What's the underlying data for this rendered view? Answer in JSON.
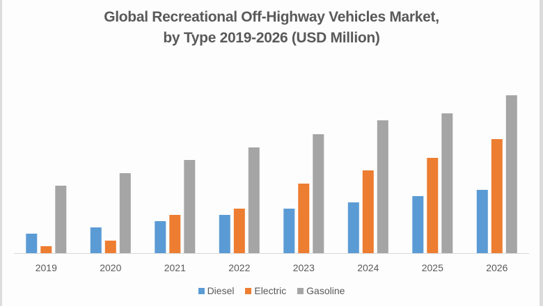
{
  "chart_data": {
    "type": "bar",
    "title": "Global Recreational Off-Highway Vehicles Market,",
    "subtitle": "by Type 2019-2026 (USD Million)",
    "xlabel": "",
    "ylabel": "",
    "categories": [
      "2019",
      "2020",
      "2021",
      "2022",
      "2023",
      "2024",
      "2025",
      "2026"
    ],
    "series": [
      {
        "name": "Diesel",
        "color": "#5B9BD5",
        "values": [
          28,
          37,
          46,
          55,
          64,
          73,
          82,
          91
        ]
      },
      {
        "name": "Electric",
        "color": "#ED7D31",
        "values": [
          10,
          18,
          55,
          64,
          100,
          119,
          137,
          164
        ]
      },
      {
        "name": "Gasoline",
        "color": "#A5A5A5",
        "values": [
          97,
          115,
          134,
          152,
          171,
          191,
          201,
          227
        ]
      }
    ],
    "ylim": [
      0,
      240
    ],
    "y_axis_visible": false,
    "grid": false,
    "legend_position": "bottom"
  }
}
